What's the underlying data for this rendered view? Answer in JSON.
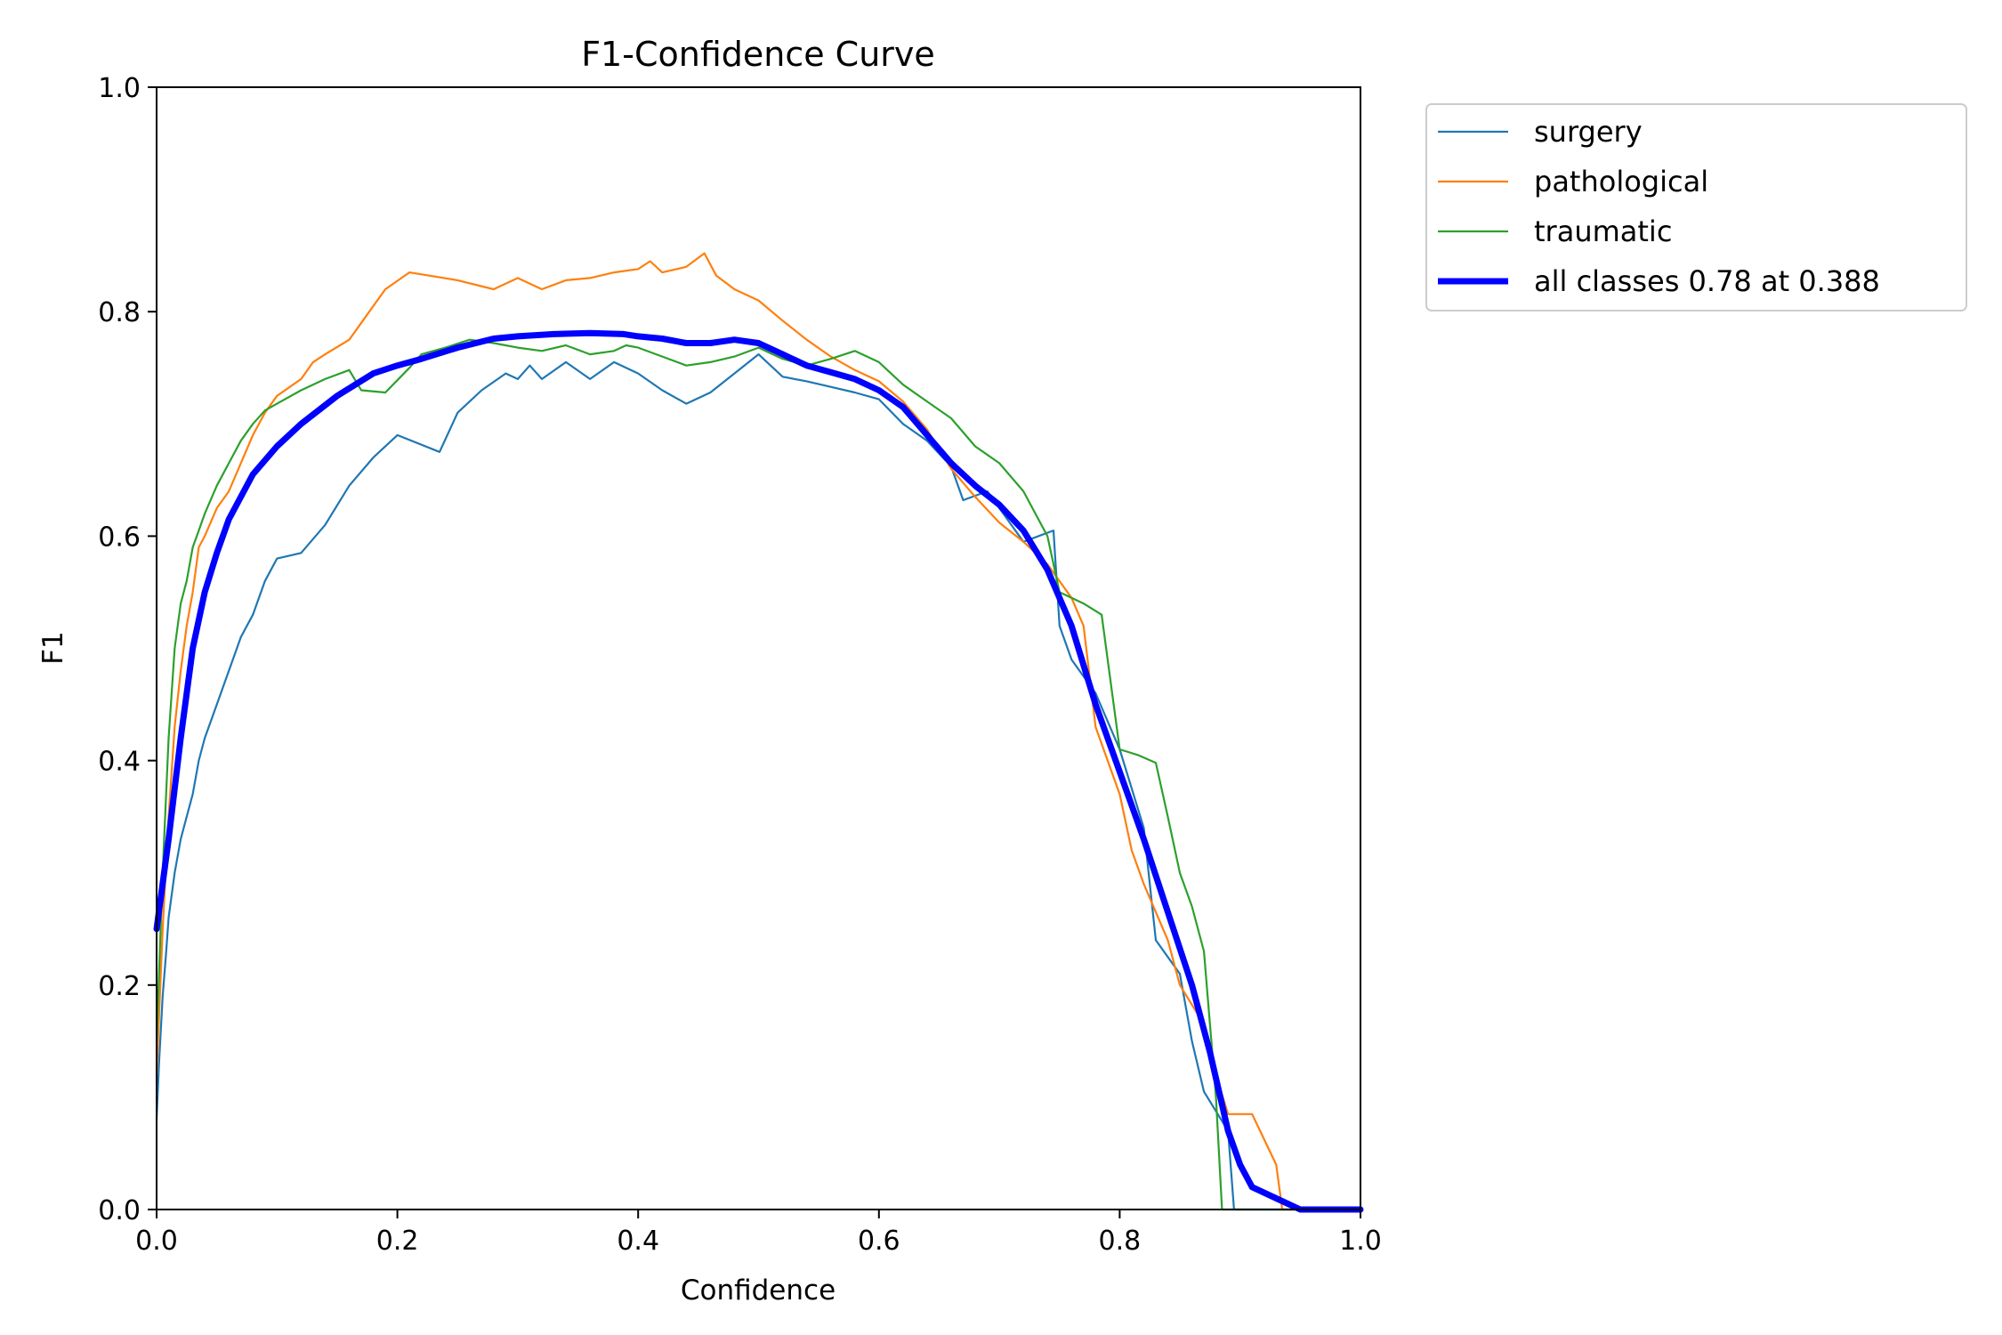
{
  "chart_data": {
    "type": "line",
    "title": "F1-Confidence Curve",
    "xlabel": "Confidence",
    "ylabel": "F1",
    "xlim": [
      0.0,
      1.0
    ],
    "ylim": [
      0.0,
      1.0
    ],
    "xticks": [
      "0.0",
      "0.2",
      "0.4",
      "0.6",
      "0.8",
      "1.0"
    ],
    "yticks": [
      "0.0",
      "0.2",
      "0.4",
      "0.6",
      "0.8",
      "1.0"
    ],
    "grid": false,
    "legend_position": "outside-top-right",
    "series": [
      {
        "name": "surgery",
        "color": "#1f77b4",
        "width": "thin",
        "points": [
          [
            0.0,
            0.08
          ],
          [
            0.002,
            0.13
          ],
          [
            0.005,
            0.19
          ],
          [
            0.008,
            0.23
          ],
          [
            0.01,
            0.26
          ],
          [
            0.015,
            0.3
          ],
          [
            0.02,
            0.33
          ],
          [
            0.025,
            0.35
          ],
          [
            0.03,
            0.37
          ],
          [
            0.035,
            0.4
          ],
          [
            0.04,
            0.42
          ],
          [
            0.05,
            0.45
          ],
          [
            0.06,
            0.48
          ],
          [
            0.07,
            0.51
          ],
          [
            0.08,
            0.53
          ],
          [
            0.09,
            0.56
          ],
          [
            0.1,
            0.58
          ],
          [
            0.12,
            0.585
          ],
          [
            0.14,
            0.61
          ],
          [
            0.16,
            0.645
          ],
          [
            0.18,
            0.67
          ],
          [
            0.2,
            0.69
          ],
          [
            0.235,
            0.675
          ],
          [
            0.25,
            0.71
          ],
          [
            0.27,
            0.73
          ],
          [
            0.29,
            0.745
          ],
          [
            0.3,
            0.74
          ],
          [
            0.31,
            0.752
          ],
          [
            0.32,
            0.74
          ],
          [
            0.34,
            0.755
          ],
          [
            0.36,
            0.74
          ],
          [
            0.38,
            0.755
          ],
          [
            0.4,
            0.745
          ],
          [
            0.42,
            0.73
          ],
          [
            0.44,
            0.718
          ],
          [
            0.46,
            0.728
          ],
          [
            0.48,
            0.745
          ],
          [
            0.5,
            0.762
          ],
          [
            0.52,
            0.742
          ],
          [
            0.54,
            0.738
          ],
          [
            0.56,
            0.733
          ],
          [
            0.58,
            0.728
          ],
          [
            0.6,
            0.722
          ],
          [
            0.62,
            0.7
          ],
          [
            0.64,
            0.685
          ],
          [
            0.66,
            0.662
          ],
          [
            0.67,
            0.632
          ],
          [
            0.69,
            0.64
          ],
          [
            0.7,
            0.625
          ],
          [
            0.72,
            0.595
          ],
          [
            0.745,
            0.605
          ],
          [
            0.75,
            0.52
          ],
          [
            0.76,
            0.49
          ],
          [
            0.78,
            0.46
          ],
          [
            0.8,
            0.41
          ],
          [
            0.82,
            0.34
          ],
          [
            0.83,
            0.24
          ],
          [
            0.85,
            0.21
          ],
          [
            0.86,
            0.15
          ],
          [
            0.87,
            0.105
          ],
          [
            0.89,
            0.07
          ],
          [
            0.895,
            0.0
          ],
          [
            1.0,
            0.0
          ]
        ]
      },
      {
        "name": "pathological",
        "color": "#ff7f0e",
        "width": "thin",
        "points": [
          [
            0.0,
            0.12
          ],
          [
            0.005,
            0.25
          ],
          [
            0.01,
            0.35
          ],
          [
            0.015,
            0.43
          ],
          [
            0.02,
            0.48
          ],
          [
            0.025,
            0.52
          ],
          [
            0.03,
            0.55
          ],
          [
            0.035,
            0.59
          ],
          [
            0.04,
            0.6
          ],
          [
            0.05,
            0.625
          ],
          [
            0.06,
            0.64
          ],
          [
            0.07,
            0.665
          ],
          [
            0.08,
            0.69
          ],
          [
            0.09,
            0.71
          ],
          [
            0.1,
            0.725
          ],
          [
            0.12,
            0.74
          ],
          [
            0.13,
            0.755
          ],
          [
            0.14,
            0.762
          ],
          [
            0.16,
            0.775
          ],
          [
            0.17,
            0.79
          ],
          [
            0.18,
            0.805
          ],
          [
            0.19,
            0.82
          ],
          [
            0.21,
            0.835
          ],
          [
            0.25,
            0.828
          ],
          [
            0.28,
            0.82
          ],
          [
            0.3,
            0.83
          ],
          [
            0.32,
            0.82
          ],
          [
            0.34,
            0.828
          ],
          [
            0.36,
            0.83
          ],
          [
            0.38,
            0.835
          ],
          [
            0.4,
            0.838
          ],
          [
            0.41,
            0.845
          ],
          [
            0.42,
            0.835
          ],
          [
            0.44,
            0.84
          ],
          [
            0.455,
            0.852
          ],
          [
            0.465,
            0.832
          ],
          [
            0.48,
            0.82
          ],
          [
            0.5,
            0.81
          ],
          [
            0.52,
            0.792
          ],
          [
            0.54,
            0.775
          ],
          [
            0.56,
            0.76
          ],
          [
            0.58,
            0.748
          ],
          [
            0.6,
            0.738
          ],
          [
            0.62,
            0.72
          ],
          [
            0.64,
            0.695
          ],
          [
            0.66,
            0.66
          ],
          [
            0.68,
            0.635
          ],
          [
            0.7,
            0.612
          ],
          [
            0.72,
            0.595
          ],
          [
            0.74,
            0.575
          ],
          [
            0.76,
            0.545
          ],
          [
            0.77,
            0.52
          ],
          [
            0.78,
            0.43
          ],
          [
            0.8,
            0.37
          ],
          [
            0.81,
            0.32
          ],
          [
            0.82,
            0.29
          ],
          [
            0.84,
            0.24
          ],
          [
            0.85,
            0.2
          ],
          [
            0.87,
            0.165
          ],
          [
            0.88,
            0.12
          ],
          [
            0.89,
            0.085
          ],
          [
            0.91,
            0.085
          ],
          [
            0.93,
            0.04
          ],
          [
            0.935,
            0.0
          ],
          [
            1.0,
            0.0
          ]
        ]
      },
      {
        "name": "traumatic",
        "color": "#2ca02c",
        "width": "thin",
        "points": [
          [
            0.0,
            0.15
          ],
          [
            0.005,
            0.3
          ],
          [
            0.01,
            0.42
          ],
          [
            0.015,
            0.5
          ],
          [
            0.02,
            0.54
          ],
          [
            0.025,
            0.56
          ],
          [
            0.03,
            0.59
          ],
          [
            0.035,
            0.605
          ],
          [
            0.04,
            0.62
          ],
          [
            0.05,
            0.645
          ],
          [
            0.06,
            0.665
          ],
          [
            0.07,
            0.685
          ],
          [
            0.08,
            0.7
          ],
          [
            0.09,
            0.712
          ],
          [
            0.1,
            0.718
          ],
          [
            0.12,
            0.73
          ],
          [
            0.14,
            0.74
          ],
          [
            0.16,
            0.748
          ],
          [
            0.17,
            0.73
          ],
          [
            0.19,
            0.728
          ],
          [
            0.21,
            0.75
          ],
          [
            0.22,
            0.762
          ],
          [
            0.24,
            0.768
          ],
          [
            0.26,
            0.775
          ],
          [
            0.28,
            0.772
          ],
          [
            0.3,
            0.768
          ],
          [
            0.32,
            0.765
          ],
          [
            0.34,
            0.77
          ],
          [
            0.36,
            0.762
          ],
          [
            0.38,
            0.765
          ],
          [
            0.39,
            0.77
          ],
          [
            0.4,
            0.768
          ],
          [
            0.42,
            0.76
          ],
          [
            0.44,
            0.752
          ],
          [
            0.46,
            0.755
          ],
          [
            0.48,
            0.76
          ],
          [
            0.5,
            0.768
          ],
          [
            0.52,
            0.758
          ],
          [
            0.54,
            0.752
          ],
          [
            0.56,
            0.758
          ],
          [
            0.58,
            0.765
          ],
          [
            0.6,
            0.755
          ],
          [
            0.62,
            0.735
          ],
          [
            0.64,
            0.72
          ],
          [
            0.66,
            0.705
          ],
          [
            0.68,
            0.68
          ],
          [
            0.7,
            0.665
          ],
          [
            0.72,
            0.64
          ],
          [
            0.74,
            0.6
          ],
          [
            0.75,
            0.55
          ],
          [
            0.77,
            0.54
          ],
          [
            0.785,
            0.53
          ],
          [
            0.8,
            0.41
          ],
          [
            0.815,
            0.405
          ],
          [
            0.83,
            0.398
          ],
          [
            0.84,
            0.35
          ],
          [
            0.85,
            0.3
          ],
          [
            0.86,
            0.27
          ],
          [
            0.87,
            0.23
          ],
          [
            0.88,
            0.1
          ],
          [
            0.885,
            0.0
          ],
          [
            1.0,
            0.0
          ]
        ]
      },
      {
        "name": "all classes 0.78 at 0.388",
        "color": "#0000ff",
        "width": "thick",
        "points": [
          [
            0.0,
            0.25
          ],
          [
            0.01,
            0.33
          ],
          [
            0.02,
            0.42
          ],
          [
            0.03,
            0.5
          ],
          [
            0.04,
            0.55
          ],
          [
            0.05,
            0.585
          ],
          [
            0.06,
            0.615
          ],
          [
            0.08,
            0.655
          ],
          [
            0.1,
            0.68
          ],
          [
            0.12,
            0.7
          ],
          [
            0.15,
            0.725
          ],
          [
            0.18,
            0.745
          ],
          [
            0.2,
            0.752
          ],
          [
            0.22,
            0.758
          ],
          [
            0.25,
            0.768
          ],
          [
            0.28,
            0.776
          ],
          [
            0.3,
            0.778
          ],
          [
            0.33,
            0.78
          ],
          [
            0.36,
            0.781
          ],
          [
            0.388,
            0.78
          ],
          [
            0.4,
            0.778
          ],
          [
            0.42,
            0.776
          ],
          [
            0.44,
            0.772
          ],
          [
            0.46,
            0.772
          ],
          [
            0.48,
            0.775
          ],
          [
            0.5,
            0.772
          ],
          [
            0.52,
            0.762
          ],
          [
            0.54,
            0.752
          ],
          [
            0.56,
            0.746
          ],
          [
            0.58,
            0.74
          ],
          [
            0.6,
            0.73
          ],
          [
            0.62,
            0.715
          ],
          [
            0.64,
            0.69
          ],
          [
            0.66,
            0.665
          ],
          [
            0.68,
            0.645
          ],
          [
            0.7,
            0.628
          ],
          [
            0.72,
            0.605
          ],
          [
            0.74,
            0.57
          ],
          [
            0.76,
            0.52
          ],
          [
            0.78,
            0.45
          ],
          [
            0.8,
            0.39
          ],
          [
            0.82,
            0.33
          ],
          [
            0.84,
            0.265
          ],
          [
            0.86,
            0.2
          ],
          [
            0.875,
            0.14
          ],
          [
            0.89,
            0.07
          ],
          [
            0.9,
            0.04
          ],
          [
            0.91,
            0.02
          ],
          [
            0.93,
            0.01
          ],
          [
            0.95,
            0.0
          ],
          [
            1.0,
            0.0
          ]
        ]
      }
    ]
  }
}
